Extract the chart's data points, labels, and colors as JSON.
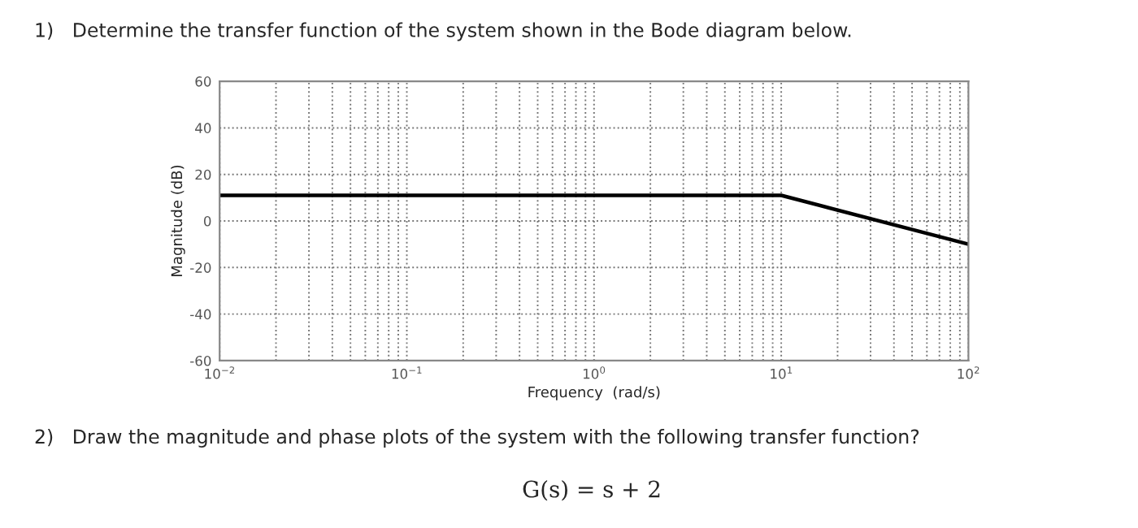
{
  "chart_data": {
    "type": "line",
    "title": "1)   Determine the transfer function of the system shown in the Bode diagram below.",
    "xlabel": "Frequency  (rad/s)",
    "ylabel": "Magnitude (dB)",
    "series": [
      {
        "color": "#000000",
        "x": [
          0.01,
          10,
          100
        ],
        "values": [
          11,
          11,
          -10
        ]
      }
    ],
    "log": "x",
    "xlim": [
      0.01,
      100
    ],
    "ylim": [
      -60,
      60
    ],
    "xticks": [
      {
        "value": 0.01,
        "label": "10$^{−2}$"
      },
      {
        "value": 0.1,
        "label": "10$^{−1}$"
      },
      {
        "value": 1,
        "label": "10$^{0}$"
      },
      {
        "value": 10,
        "label": "10$^{1}$"
      },
      {
        "value": 100,
        "label": "10$^{2}$"
      }
    ],
    "yticks": [
      -60,
      -40,
      -20,
      0,
      20,
      40,
      60
    ],
    "grid": true,
    "line_style": "solid",
    "marker": "none",
    "annotations": [
      "2)   Draw the magnitude and phase plots of the system with the following transfer function?",
      "G(s) = s + 2"
    ]
  }
}
